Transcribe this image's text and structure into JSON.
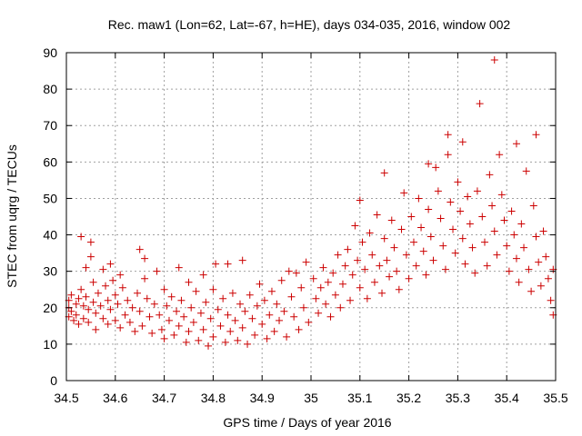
{
  "chart_data": {
    "type": "scatter",
    "title": "Rec. maw1 (Lon=62, Lat=-67, h=HE), days 034-035, 2016, window 002",
    "xlabel": "GPS time / Days of year 2016",
    "ylabel": "STEC from uqrg / TECUs",
    "xlim": [
      34.5,
      35.5
    ],
    "ylim": [
      0,
      90
    ],
    "xticks": [
      "34.5",
      "34.6",
      "34.7",
      "34.8",
      "34.9",
      "35",
      "35.1",
      "35.2",
      "35.3",
      "35.4",
      "35.5"
    ],
    "yticks": [
      "0",
      "10",
      "20",
      "30",
      "40",
      "50",
      "60",
      "70",
      "80",
      "90"
    ],
    "grid": true,
    "marker": "+",
    "color": "#cc0000",
    "points": [
      [
        34.505,
        22.0
      ],
      [
        34.505,
        20.0
      ],
      [
        34.505,
        17.5
      ],
      [
        34.51,
        23.5
      ],
      [
        34.51,
        19.0
      ],
      [
        34.515,
        16.5
      ],
      [
        34.52,
        21.0
      ],
      [
        34.52,
        18.0
      ],
      [
        34.525,
        22.5
      ],
      [
        34.525,
        15.5
      ],
      [
        34.53,
        39.5
      ],
      [
        34.53,
        25.0
      ],
      [
        34.535,
        20.5
      ],
      [
        34.535,
        17.0
      ],
      [
        34.54,
        31.0
      ],
      [
        34.54,
        23.0
      ],
      [
        34.545,
        19.5
      ],
      [
        34.545,
        16.0
      ],
      [
        34.55,
        38.0
      ],
      [
        34.55,
        34.0
      ],
      [
        34.555,
        27.0
      ],
      [
        34.555,
        21.5
      ],
      [
        34.56,
        18.5
      ],
      [
        34.56,
        14.0
      ],
      [
        34.565,
        24.0
      ],
      [
        34.57,
        20.5
      ],
      [
        34.575,
        30.5
      ],
      [
        34.575,
        17.0
      ],
      [
        34.58,
        26.0
      ],
      [
        34.585,
        22.0
      ],
      [
        34.585,
        15.5
      ],
      [
        34.59,
        32.0
      ],
      [
        34.59,
        19.5
      ],
      [
        34.595,
        27.5
      ],
      [
        34.6,
        23.5
      ],
      [
        34.6,
        16.5
      ],
      [
        34.605,
        21.0
      ],
      [
        34.61,
        29.0
      ],
      [
        34.61,
        14.5
      ],
      [
        34.615,
        25.5
      ],
      [
        34.62,
        18.0
      ],
      [
        34.625,
        22.0
      ],
      [
        34.63,
        16.0
      ],
      [
        34.635,
        20.0
      ],
      [
        34.64,
        13.5
      ],
      [
        34.645,
        24.0
      ],
      [
        34.65,
        36.0
      ],
      [
        34.65,
        19.0
      ],
      [
        34.655,
        15.0
      ],
      [
        34.66,
        33.5
      ],
      [
        34.66,
        28.0
      ],
      [
        34.665,
        22.5
      ],
      [
        34.67,
        17.5
      ],
      [
        34.675,
        13.0
      ],
      [
        34.68,
        21.0
      ],
      [
        34.685,
        30.0
      ],
      [
        34.69,
        18.0
      ],
      [
        34.695,
        14.0
      ],
      [
        34.7,
        25.0
      ],
      [
        34.7,
        11.5
      ],
      [
        34.705,
        20.5
      ],
      [
        34.71,
        16.5
      ],
      [
        34.715,
        23.0
      ],
      [
        34.72,
        12.5
      ],
      [
        34.725,
        19.0
      ],
      [
        34.73,
        31.0
      ],
      [
        34.73,
        15.0
      ],
      [
        34.735,
        22.0
      ],
      [
        34.74,
        17.5
      ],
      [
        34.745,
        10.5
      ],
      [
        34.75,
        27.0
      ],
      [
        34.75,
        13.5
      ],
      [
        34.755,
        20.0
      ],
      [
        34.76,
        16.0
      ],
      [
        34.765,
        24.5
      ],
      [
        34.77,
        11.0
      ],
      [
        34.775,
        18.5
      ],
      [
        34.78,
        29.0
      ],
      [
        34.78,
        14.0
      ],
      [
        34.785,
        21.5
      ],
      [
        34.79,
        9.5
      ],
      [
        34.795,
        17.0
      ],
      [
        34.8,
        25.0
      ],
      [
        34.8,
        12.0
      ],
      [
        34.805,
        32.0
      ],
      [
        34.81,
        19.5
      ],
      [
        34.815,
        15.0
      ],
      [
        34.82,
        22.5
      ],
      [
        34.825,
        10.5
      ],
      [
        34.83,
        32.0
      ],
      [
        34.83,
        18.0
      ],
      [
        34.835,
        13.5
      ],
      [
        34.84,
        24.0
      ],
      [
        34.845,
        16.5
      ],
      [
        34.85,
        11.0
      ],
      [
        34.855,
        21.0
      ],
      [
        34.86,
        33.0
      ],
      [
        34.86,
        14.5
      ],
      [
        34.865,
        19.0
      ],
      [
        34.87,
        10.0
      ],
      [
        34.875,
        23.5
      ],
      [
        34.88,
        17.0
      ],
      [
        34.885,
        12.5
      ],
      [
        34.89,
        20.5
      ],
      [
        34.895,
        26.5
      ],
      [
        34.9,
        15.5
      ],
      [
        34.905,
        22.0
      ],
      [
        34.91,
        11.5
      ],
      [
        34.915,
        18.0
      ],
      [
        34.92,
        24.5
      ],
      [
        34.925,
        13.5
      ],
      [
        34.93,
        21.0
      ],
      [
        34.935,
        16.5
      ],
      [
        34.94,
        27.5
      ],
      [
        34.945,
        19.0
      ],
      [
        34.95,
        12.0
      ],
      [
        34.955,
        30.0
      ],
      [
        34.96,
        23.0
      ],
      [
        34.965,
        17.5
      ],
      [
        34.97,
        29.5
      ],
      [
        34.975,
        14.0
      ],
      [
        34.98,
        25.5
      ],
      [
        34.985,
        20.0
      ],
      [
        34.99,
        32.5
      ],
      [
        34.995,
        16.0
      ],
      [
        35.005,
        28.0
      ],
      [
        35.01,
        22.5
      ],
      [
        35.015,
        18.5
      ],
      [
        35.02,
        25.5
      ],
      [
        35.025,
        31.0
      ],
      [
        35.03,
        21.0
      ],
      [
        35.035,
        27.0
      ],
      [
        35.04,
        17.5
      ],
      [
        35.045,
        29.5
      ],
      [
        35.05,
        23.5
      ],
      [
        35.055,
        34.5
      ],
      [
        35.06,
        20.0
      ],
      [
        35.065,
        26.5
      ],
      [
        35.07,
        31.5
      ],
      [
        35.075,
        36.0
      ],
      [
        35.08,
        22.0
      ],
      [
        35.085,
        29.0
      ],
      [
        35.09,
        42.5
      ],
      [
        35.095,
        33.0
      ],
      [
        35.1,
        25.5
      ],
      [
        35.1,
        49.5
      ],
      [
        35.105,
        38.0
      ],
      [
        35.11,
        30.5
      ],
      [
        35.115,
        22.5
      ],
      [
        35.12,
        40.5
      ],
      [
        35.125,
        34.5
      ],
      [
        35.13,
        27.0
      ],
      [
        35.135,
        45.5
      ],
      [
        35.14,
        31.5
      ],
      [
        35.145,
        24.0
      ],
      [
        35.15,
        57.0
      ],
      [
        35.15,
        39.0
      ],
      [
        35.155,
        33.0
      ],
      [
        35.16,
        28.5
      ],
      [
        35.165,
        44.0
      ],
      [
        35.17,
        36.5
      ],
      [
        35.175,
        30.0
      ],
      [
        35.18,
        25.0
      ],
      [
        35.185,
        41.5
      ],
      [
        35.19,
        51.5
      ],
      [
        35.195,
        34.5
      ],
      [
        35.2,
        28.0
      ],
      [
        35.205,
        45.0
      ],
      [
        35.21,
        38.0
      ],
      [
        35.215,
        31.5
      ],
      [
        35.22,
        50.0
      ],
      [
        35.225,
        42.0
      ],
      [
        35.23,
        35.5
      ],
      [
        35.235,
        29.0
      ],
      [
        35.24,
        59.5
      ],
      [
        35.24,
        47.0
      ],
      [
        35.245,
        39.5
      ],
      [
        35.25,
        33.0
      ],
      [
        35.255,
        58.5
      ],
      [
        35.26,
        52.0
      ],
      [
        35.265,
        44.5
      ],
      [
        35.27,
        37.0
      ],
      [
        35.275,
        30.5
      ],
      [
        35.28,
        67.5
      ],
      [
        35.28,
        62.0
      ],
      [
        35.285,
        49.0
      ],
      [
        35.29,
        41.5
      ],
      [
        35.295,
        35.0
      ],
      [
        35.3,
        54.5
      ],
      [
        35.305,
        46.5
      ],
      [
        35.31,
        65.5
      ],
      [
        35.31,
        39.0
      ],
      [
        35.315,
        32.0
      ],
      [
        35.32,
        50.5
      ],
      [
        35.325,
        43.0
      ],
      [
        35.33,
        36.5
      ],
      [
        35.335,
        29.5
      ],
      [
        35.34,
        52.0
      ],
      [
        35.345,
        76.0
      ],
      [
        35.35,
        45.0
      ],
      [
        35.355,
        38.0
      ],
      [
        35.36,
        31.5
      ],
      [
        35.365,
        56.5
      ],
      [
        35.37,
        48.0
      ],
      [
        35.375,
        88.0
      ],
      [
        35.375,
        41.0
      ],
      [
        35.38,
        34.5
      ],
      [
        35.385,
        62.0
      ],
      [
        35.39,
        51.0
      ],
      [
        35.395,
        44.0
      ],
      [
        35.4,
        37.0
      ],
      [
        35.405,
        30.0
      ],
      [
        35.41,
        46.5
      ],
      [
        35.415,
        40.0
      ],
      [
        35.42,
        65.0
      ],
      [
        35.42,
        33.5
      ],
      [
        35.425,
        27.0
      ],
      [
        35.43,
        43.0
      ],
      [
        35.435,
        36.5
      ],
      [
        35.44,
        57.5
      ],
      [
        35.445,
        30.5
      ],
      [
        35.45,
        24.5
      ],
      [
        35.455,
        48.0
      ],
      [
        35.46,
        67.5
      ],
      [
        35.46,
        39.5
      ],
      [
        35.465,
        32.5
      ],
      [
        35.47,
        26.0
      ],
      [
        35.475,
        41.0
      ],
      [
        35.48,
        34.0
      ],
      [
        35.485,
        28.0
      ],
      [
        35.49,
        22.0
      ],
      [
        35.495,
        30.5
      ],
      [
        35.495,
        18.0
      ]
    ]
  }
}
